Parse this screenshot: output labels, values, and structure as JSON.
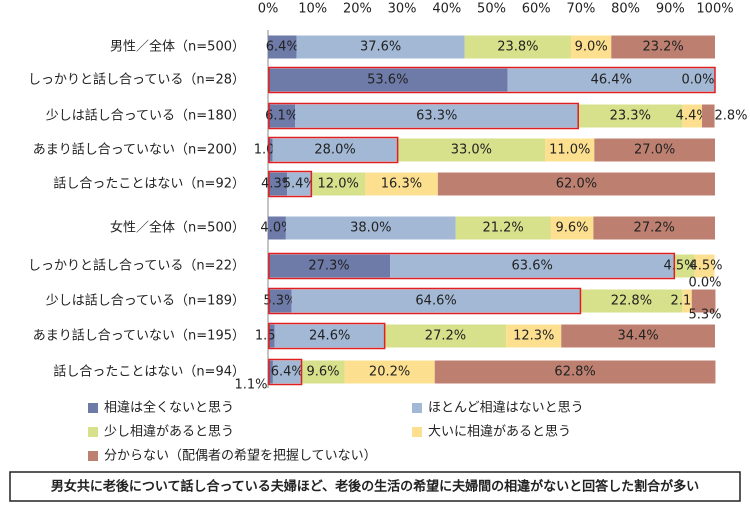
{
  "chart_data": {
    "type": "bar",
    "orientation": "horizontal",
    "categories": [
      "男性／全体（n=500）",
      "しっかりと話し合っている（n=28）",
      "少しは話し合っている（n=180）",
      "あまり話し合っていない（n=200）",
      "話し合ったことはない（n=92）",
      "女性／全体（n=500）",
      "しっかりと話し合っている（n=22）",
      "少しは話し合っている（n=189）",
      "あまり話し合っていない（n=195）",
      "話し合ったことはない（n=94）"
    ],
    "series": [
      {
        "name": "相違は全くないと思う",
        "color": "#6e7aa8",
        "values": [
          6.4,
          53.6,
          6.1,
          1.0,
          4.3,
          4.0,
          27.3,
          5.3,
          1.5,
          1.1
        ],
        "value_labels": [
          "6.4%",
          "53.6%",
          "6.1%",
          "1.0%",
          "4.3%",
          "4.0%",
          "27.3%",
          "5.3%",
          "1.5%",
          "1.1%"
        ]
      },
      {
        "name": "ほとんど相違はないと思う",
        "color": "#a2b8d4",
        "values": [
          37.6,
          46.4,
          63.3,
          28.0,
          5.4,
          38.0,
          63.6,
          64.6,
          24.6,
          6.4
        ],
        "value_labels": [
          "37.6%",
          "46.4%",
          "63.3%",
          "28.0%",
          "5.4%",
          "38.0%",
          "63.6%",
          "64.6%",
          "24.6%",
          "6.4%"
        ]
      },
      {
        "name": "少し相違があると思う",
        "color": "#d7e08a",
        "values": [
          23.8,
          0.0,
          23.3,
          33.0,
          12.0,
          21.2,
          4.5,
          22.8,
          27.2,
          9.6
        ],
        "value_labels": [
          "23.8%",
          null,
          "23.3%",
          "33.0%",
          "12.0%",
          "21.2%",
          "4.5%",
          "22.8%",
          "27.2%",
          "9.6%"
        ]
      },
      {
        "name": "大いに相違があると思う",
        "color": "#fde08f",
        "values": [
          9.0,
          0.0,
          4.4,
          11.0,
          16.3,
          9.6,
          4.5,
          2.1,
          12.3,
          20.2
        ],
        "value_labels": [
          "9.0%",
          null,
          "4.4%",
          "11.0%",
          "16.3%",
          "9.6%",
          "4.5%",
          "2.1%",
          "12.3%",
          "20.2%"
        ]
      },
      {
        "name": "分からない（配偶者の希望を把握していない）",
        "color": "#bd8070",
        "values": [
          23.2,
          0.0,
          2.8,
          27.0,
          62.0,
          27.2,
          0.0,
          5.3,
          34.4,
          62.8
        ],
        "value_labels": [
          "23.2%",
          "0.0%",
          "2.8%",
          "27.0%",
          "62.0%",
          "27.2%",
          "0.0%",
          "5.3%",
          "34.4%",
          "62.8%"
        ]
      }
    ],
    "xlim": [
      0,
      100
    ],
    "xticks": [
      {
        "value": 0,
        "label": "0%"
      },
      {
        "value": 10,
        "label": "10%"
      },
      {
        "value": 20,
        "label": "20%"
      },
      {
        "value": 30,
        "label": "30%"
      },
      {
        "value": 40,
        "label": "40%"
      },
      {
        "value": 50,
        "label": "50%"
      },
      {
        "value": 60,
        "label": "60%"
      },
      {
        "value": 70,
        "label": "70%"
      },
      {
        "value": 80,
        "label": "80%"
      },
      {
        "value": 90,
        "label": "90%"
      },
      {
        "value": 100,
        "label": "100%"
      }
    ],
    "highlight_rows": [
      1,
      2,
      3,
      4,
      6,
      7,
      8,
      9
    ],
    "highlight_color": "#e02020",
    "note": "男女共に老後について話し合っている夫婦ほど、老後の生活の希望に夫婦間の相違がないと回答した割合が多い"
  }
}
